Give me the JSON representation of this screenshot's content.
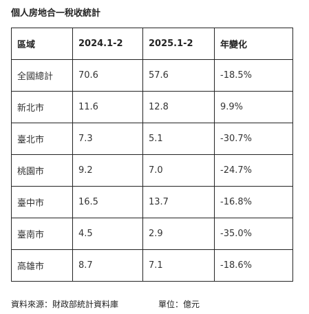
{
  "title": "個人房地合一稅收統計",
  "table": {
    "headers": [
      "區域",
      "2024.1-2",
      "2025.1-2",
      "年變化"
    ],
    "rows": [
      [
        "全國總計",
        "70.6",
        "57.6",
        "-18.5%"
      ],
      [
        "新北市",
        "11.6",
        "12.8",
        "9.9%"
      ],
      [
        "臺北市",
        "7.3",
        "5.1",
        "-30.7%"
      ],
      [
        "桃園市",
        "9.2",
        "7.0",
        "-24.7%"
      ],
      [
        "臺中市",
        "16.5",
        "13.7",
        "-16.8%"
      ],
      [
        "臺南市",
        "4.5",
        "2.9",
        "-35.0%"
      ],
      [
        "高雄市",
        "8.7",
        "7.1",
        "-18.6%"
      ]
    ]
  },
  "footer": {
    "source": "資料來源：財政部統計資料庫",
    "unit": "單位：億元"
  }
}
